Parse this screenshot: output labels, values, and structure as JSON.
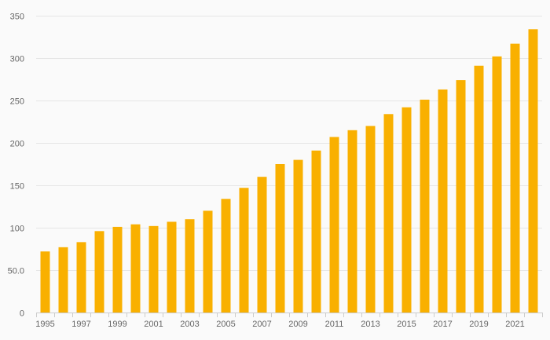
{
  "chart_data": {
    "type": "bar",
    "title": "",
    "xlabel": "",
    "ylabel": "",
    "categories": [
      "1995",
      "1996",
      "1997",
      "1998",
      "1999",
      "2000",
      "2001",
      "2002",
      "2003",
      "2004",
      "2005",
      "2006",
      "2007",
      "2008",
      "2009",
      "2010",
      "2011",
      "2012",
      "2013",
      "2014",
      "2015",
      "2016",
      "2017",
      "2018",
      "2019",
      "2020",
      "2021",
      "2022"
    ],
    "x_tick_labels": [
      "1995",
      "1997",
      "1999",
      "2001",
      "2003",
      "2005",
      "2007",
      "2009",
      "2011",
      "2013",
      "2015",
      "2017",
      "2019",
      "2021"
    ],
    "values": [
      72,
      77,
      83,
      96,
      101,
      104,
      102,
      107,
      110,
      120,
      134,
      147,
      160,
      175,
      180,
      191,
      207,
      215,
      220,
      234,
      242,
      251,
      263,
      274,
      291,
      302,
      317,
      334
    ],
    "ylim": [
      0,
      350
    ],
    "y_ticks": [
      0,
      50,
      100,
      150,
      200,
      250,
      300,
      350
    ],
    "y_tick_labels": [
      "0",
      "50.0",
      "100",
      "150",
      "200",
      "250",
      "300",
      "350"
    ],
    "grid": true,
    "legend": "none",
    "bar_color": "#f9b000",
    "background_color": "#fafafa"
  }
}
